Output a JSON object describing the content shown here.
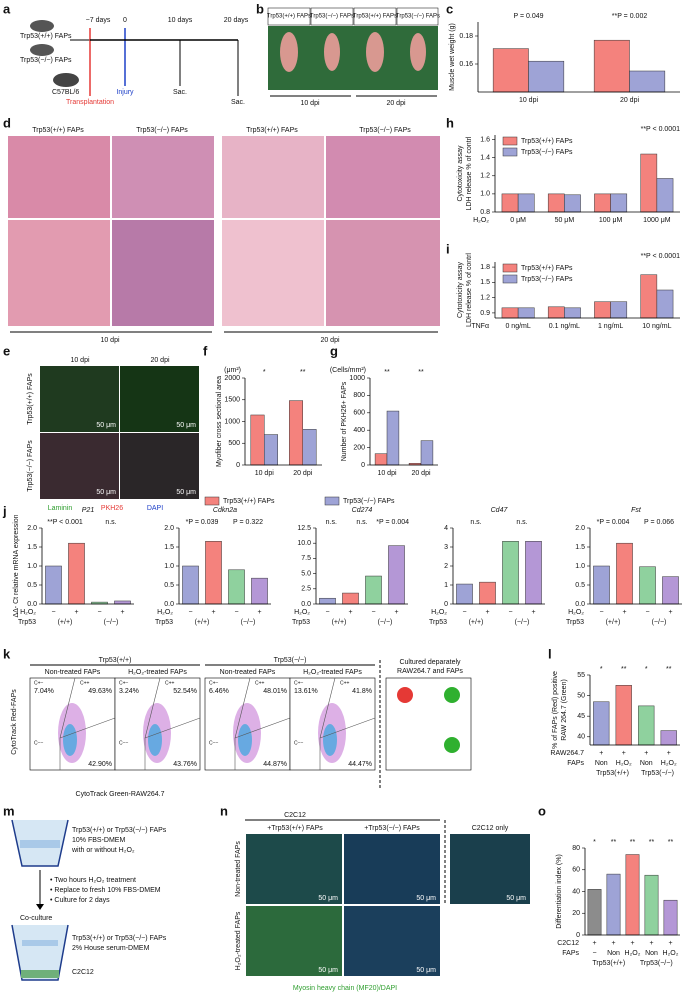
{
  "panel_labels": [
    "a",
    "b",
    "c",
    "d",
    "e",
    "f",
    "g",
    "h",
    "i",
    "j",
    "k",
    "l",
    "m",
    "n",
    "o"
  ],
  "timeline": {
    "groups": [
      "Trp53(+/+) FAPs",
      "Trp53(−/−) FAPs"
    ],
    "host": "C57BL/6",
    "times": [
      "−7 days",
      "0",
      "10 days",
      "20 days"
    ],
    "events": [
      "Transplantation",
      "Injury",
      "Sac.",
      "Sac."
    ]
  },
  "muscle_photos": {
    "headers": [
      "Trp53(+/+) FAPs",
      "Trp53(−/−) FAPs",
      "Trp53(+/+) FAPs",
      "Trp53(−/−) FAPs"
    ],
    "groups": [
      "10 dpi",
      "20 dpi"
    ]
  },
  "histology": {
    "headers": [
      "Trp53(+/+) FAPs",
      "Trp53(−/−) FAPs",
      "Trp53(+/+) FAPs",
      "Trp53(−/−) FAPs"
    ],
    "groups": [
      "10 dpi",
      "20 dpi"
    ]
  },
  "fluorescence": {
    "columns": [
      "10 dpi",
      "20 dpi"
    ],
    "rows": [
      "Trp53(+/+) FAPs",
      "Trp53(−/−) FAPs"
    ],
    "scale": "50 μm",
    "stains": [
      "Laminin",
      "PKH26",
      "DAPI"
    ]
  },
  "flow": {
    "ylabel": "CytoTrack Red-FAPs",
    "xlabel": "CytoTrack Green-RAW264.7",
    "groups": [
      "Trp53(+/+)",
      "Trp53(−/−)"
    ],
    "gates": [
      "C+−",
      "C++",
      "C−−"
    ],
    "plots": [
      {
        "title": "Non-treated FAPs",
        "quadrants": [
          "7.04%",
          "49.63%",
          "42.90%"
        ]
      },
      {
        "title": "H₂O₂-treated FAPs",
        "quadrants": [
          "3.24%",
          "52.54%",
          "43.76%"
        ]
      },
      {
        "title": "Non-treated FAPs",
        "quadrants": [
          "6.46%",
          "48.01%",
          "44.87%"
        ]
      },
      {
        "title": "H₂O₂-treated FAPs",
        "quadrants": [
          "13.61%",
          "41.8%",
          "44.47%"
        ]
      }
    ],
    "separate": [
      "Cultured deparately",
      "RAW264.7 and FAPs"
    ]
  },
  "scheme": {
    "top": [
      "Trp53(+/+) or Trp53(−/−) FAPs",
      "10% FBS-DMEM",
      "with or without H₂O₂"
    ],
    "steps": [
      "• Two hours H₂O₂ treatment",
      "• Replace to fresh 10% FBS-DMEM",
      "• Culture for 2 days"
    ],
    "coculture": "Co-culture",
    "bottom": [
      "Trp53(+/+) or Trp53(−/−) FAPs",
      "2% House serum-DMEM",
      "C2C12"
    ]
  },
  "myotubes": {
    "header": "C2C12",
    "columns": [
      "+Trp53(+/+) FAPs",
      "+Trp53(−/−) FAPs",
      "C2C12 only"
    ],
    "rows": [
      "Non-treated FAPs",
      "H₂O₂-treated FAPs"
    ],
    "scale": "50 μm",
    "caption": "Myosin heavy chain (MF20)/DAPI"
  },
  "chart_data": [
    {
      "type": "bar",
      "ylabel": "Muscle wet weight (g)",
      "categories": [
        "10 dpi",
        "20 dpi"
      ],
      "series": [
        {
          "color": "#f4827d",
          "values": [
            0.171,
            0.177
          ]
        },
        {
          "color": "#9ea3d6",
          "values": [
            0.162,
            0.155
          ]
        }
      ],
      "ylim": [
        0.14,
        0.19
      ],
      "yticks": [
        0.16,
        0.18
      ],
      "annotations": [
        "P = 0.049",
        "**P = 0.002"
      ]
    },
    {
      "type": "bar",
      "ylabel": "Myofiber cross sectional area",
      "unit": "(μm²)",
      "categories": [
        "10 dpi",
        "20 dpi"
      ],
      "series": [
        {
          "name": "Trp53(+/+) FAPs",
          "color": "#f4827d",
          "values": [
            1150,
            1480
          ]
        },
        {
          "name": "Trp53(−/−) FAPs",
          "color": "#9ea3d6",
          "values": [
            700,
            820
          ]
        }
      ],
      "ylim": [
        0,
        2000
      ],
      "yticks": [
        0,
        500,
        1000,
        1500,
        2000
      ],
      "annotations": [
        "*",
        "**"
      ],
      "legend": "below"
    },
    {
      "type": "bar",
      "ylabel": "Number of PKH26+ FAPs",
      "unit": "(Cells/mm²)",
      "categories": [
        "10 dpi",
        "20 dpi"
      ],
      "series": [
        {
          "color": "#f4827d",
          "values": [
            130,
            20
          ]
        },
        {
          "color": "#9ea3d6",
          "values": [
            620,
            280
          ]
        }
      ],
      "ylim": [
        0,
        1000
      ],
      "yticks": [
        0,
        200,
        400,
        600,
        800,
        1000
      ],
      "annotations": [
        "**",
        "**"
      ]
    },
    {
      "type": "bar",
      "ylabel": [
        "Cytotoxicity assay",
        "LDH release % of contrl"
      ],
      "xlabel": "H₂O₂",
      "categories": [
        "0 μM",
        "50 μM",
        "100 μM",
        "1000 μM"
      ],
      "series": [
        {
          "name": "Trp53(+/+) FAPs",
          "color": "#f4827d",
          "values": [
            1.0,
            1.0,
            1.0,
            1.44
          ]
        },
        {
          "name": "Trp53(−/−) FAPs",
          "color": "#9ea3d6",
          "values": [
            1.0,
            0.99,
            1.0,
            1.17
          ]
        }
      ],
      "ylim": [
        0.8,
        1.65
      ],
      "yticks": [
        0.8,
        {
          "value": 1,
          "label": "1.0"
        },
        1.2,
        1.4,
        1.6
      ],
      "annotations": [
        "**P < 0.0001"
      ],
      "legend": "top-left"
    },
    {
      "type": "bar",
      "ylabel": [
        "Cytotoxicity assay",
        "LDH release % of contrl"
      ],
      "xlabel": "TNFα",
      "categories": [
        "0 ng/mL",
        "0.1 ng/mL",
        "1 ng/mL",
        "10 ng/mL"
      ],
      "series": [
        {
          "name": "Trp53(+/+) FAPs",
          "color": "#f4827d",
          "values": [
            1.0,
            1.02,
            1.12,
            1.65
          ]
        },
        {
          "name": "Trp53(−/−) FAPs",
          "color": "#9ea3d6",
          "values": [
            1.0,
            1.0,
            1.12,
            1.35
          ]
        }
      ],
      "ylim": [
        0.8,
        1.9
      ],
      "yticks": [
        0.9,
        1.2,
        1.5,
        1.8
      ],
      "annotations": [
        "**P < 0.0001"
      ],
      "legend": "top-left"
    },
    {
      "type": "bar",
      "title": "P21",
      "ylabel": "ΔΔ- Ct relative mRNA expression",
      "values": [
        1.0,
        1.6,
        0.05,
        0.08
      ],
      "colors": [
        "#9ea3d6",
        "#f4827d",
        "#8fd19e",
        "#b497d6"
      ],
      "ylim": [
        0,
        2
      ],
      "yticks": [
        {
          "value": 0,
          "label": "0.0"
        },
        0.5,
        {
          "value": 1,
          "label": "1.0"
        },
        1.5,
        {
          "value": 2,
          "label": "2.0"
        }
      ],
      "annotations": [
        "**P < 0.001",
        "n.s."
      ],
      "rows": [
        {
          "label": "H₂O₂",
          "cells": [
            "−",
            "+",
            "−",
            "+"
          ]
        },
        {
          "label": "Trp53",
          "cells": [
            "(+/+)",
            "(−/−)"
          ]
        }
      ]
    },
    {
      "type": "bar",
      "title": "Cdkn2a",
      "values": [
        1.0,
        1.65,
        0.9,
        0.68
      ],
      "colors": [
        "#9ea3d6",
        "#f4827d",
        "#8fd19e",
        "#b497d6"
      ],
      "ylim": [
        0,
        2
      ],
      "yticks": [
        {
          "value": 0,
          "label": "0.0"
        },
        0.5,
        {
          "value": 1,
          "label": "1.0"
        },
        1.5,
        {
          "value": 2,
          "label": "2.0"
        }
      ],
      "annotations": [
        "*P = 0.039",
        "P = 0.322"
      ],
      "rows": [
        {
          "label": "H₂O₂",
          "cells": [
            "−",
            "+",
            "−",
            "+"
          ]
        },
        {
          "label": "Trp53",
          "cells": [
            "(+/+)",
            "(−/−)"
          ]
        }
      ]
    },
    {
      "type": "bar",
      "title": "Cd274",
      "values": [
        0.95,
        1.8,
        4.6,
        9.6
      ],
      "colors": [
        "#9ea3d6",
        "#f4827d",
        "#8fd19e",
        "#b497d6"
      ],
      "ylim": [
        0,
        12.5
      ],
      "yticks": [
        {
          "value": 0,
          "label": "0.0"
        },
        2.5,
        {
          "value": 5,
          "label": "5.0"
        },
        7.5,
        {
          "value": 10,
          "label": "10.0"
        },
        12.5
      ],
      "annotations": [
        "n.s.",
        "n.s.",
        "*P = 0.004"
      ],
      "rows": [
        {
          "label": "H₂O₂",
          "cells": [
            "−",
            "+",
            "−",
            "+"
          ]
        },
        {
          "label": "Trp53",
          "cells": [
            "(+/+)",
            "(−/−)"
          ]
        }
      ]
    },
    {
      "type": "bar",
      "title": "Cd47",
      "values": [
        1.05,
        1.15,
        3.3,
        3.3
      ],
      "colors": [
        "#9ea3d6",
        "#f4827d",
        "#8fd19e",
        "#b497d6"
      ],
      "ylim": [
        0,
        4
      ],
      "yticks": [
        0,
        1,
        2,
        3,
        4
      ],
      "annotations": [
        "n.s.",
        "n.s."
      ],
      "rows": [
        {
          "label": "H₂O₂",
          "cells": [
            "−",
            "+",
            "−",
            "+"
          ]
        },
        {
          "label": "Trp53",
          "cells": [
            "(+/+)",
            "(−/−)"
          ]
        }
      ]
    },
    {
      "type": "bar",
      "title": "Fst",
      "values": [
        1.0,
        1.6,
        0.98,
        0.72
      ],
      "colors": [
        "#9ea3d6",
        "#f4827d",
        "#8fd19e",
        "#b497d6"
      ],
      "ylim": [
        0,
        2
      ],
      "yticks": [
        {
          "value": 0,
          "label": "0.0"
        },
        0.5,
        {
          "value": 1,
          "label": "1.0"
        },
        1.5,
        {
          "value": 2,
          "label": "2.0"
        }
      ],
      "annotations": [
        "*P = 0.004",
        "P = 0.066"
      ],
      "rows": [
        {
          "label": "H₂O₂",
          "cells": [
            "−",
            "+",
            "−",
            "+"
          ]
        },
        {
          "label": "Trp53",
          "cells": [
            "(+/+)",
            "(−/−)"
          ]
        }
      ]
    },
    {
      "type": "bar",
      "ylabel": [
        "% of FAPs (Red) positive",
        "RAW 264.7 (Green)"
      ],
      "values": [
        48.5,
        52.5,
        47.5,
        41.5
      ],
      "colors": [
        "#9ea3d6",
        "#f4827d",
        "#8fd19e",
        "#b497d6"
      ],
      "ylim": [
        38,
        55
      ],
      "yticks": [
        40,
        45,
        50,
        55
      ],
      "annotations": [
        "*",
        "**",
        "*",
        "**"
      ],
      "rows": [
        {
          "label": "RAW264.7",
          "cells": [
            "+",
            "+",
            "+",
            "+"
          ]
        },
        {
          "label": "FAPs",
          "cells": [
            "Non",
            "H₂O₂",
            "Non",
            "H₂O₂"
          ]
        },
        {
          "cells": [
            "Trp53(+/+)",
            "Trp53(−/−)"
          ]
        }
      ]
    },
    {
      "type": "bar",
      "ylabel": "Differentiation index (%)",
      "values": [
        42,
        56,
        74,
        55,
        32
      ],
      "colors": [
        "#8c8c8c",
        "#9ea3d6",
        "#f4827d",
        "#8fd19e",
        "#b497d6"
      ],
      "ylim": [
        0,
        80
      ],
      "yticks": [
        0,
        20,
        40,
        60,
        80
      ],
      "annotations": [
        "*",
        "**",
        "**",
        "**",
        "**"
      ],
      "rows": [
        {
          "label": "C2C12",
          "cells": [
            "+",
            "+",
            "+",
            "+",
            "+"
          ]
        },
        {
          "label": "FAPs",
          "cells": [
            "−",
            "Non",
            "H₂O₂",
            "Non",
            "H₂O₂"
          ]
        },
        {
          "cells": [
            "Trp53(+/+)",
            "Trp53(−/−)"
          ]
        }
      ]
    }
  ]
}
